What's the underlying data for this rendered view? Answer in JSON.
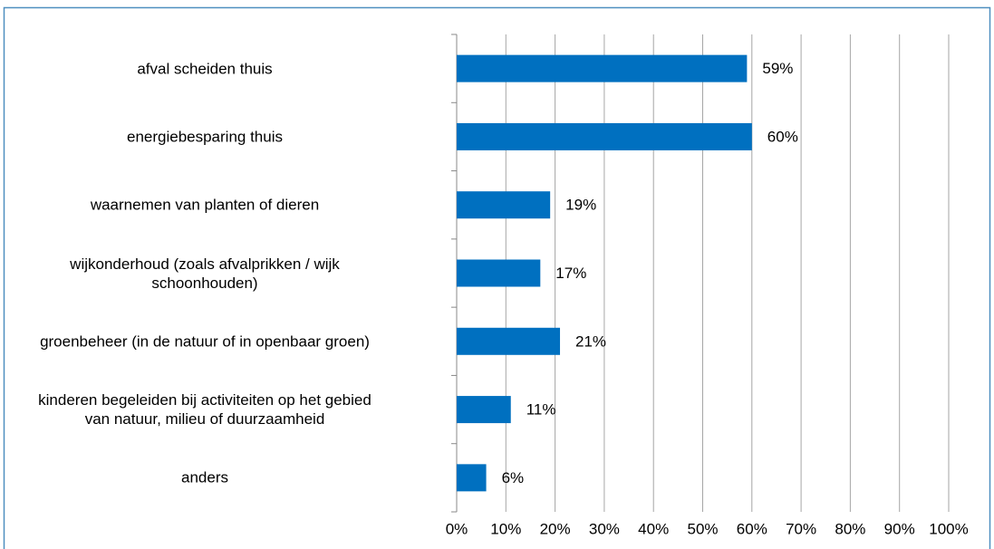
{
  "chart_data": {
    "type": "bar",
    "orientation": "horizontal",
    "categories": [
      "afval scheiden thuis",
      "energiebesparing thuis",
      "waarnemen van planten of dieren",
      "wijkonderhoud (zoals afvalprikken / wijk\nschoonhouden)",
      "groenbeheer (in de natuur of in openbaar groen)",
      "kinderen begeleiden bij activiteiten op het gebied\nvan natuur, milieu of duurzaamheid",
      "anders"
    ],
    "values": [
      59,
      60,
      19,
      17,
      21,
      11,
      6
    ],
    "value_labels": [
      "59%",
      "60%",
      "19%",
      "17%",
      "21%",
      "11%",
      "6%"
    ],
    "color": "#0070c0",
    "xlim": [
      0,
      100
    ],
    "xticks": [
      {
        "value": 0,
        "label": "0%"
      },
      {
        "value": 10,
        "label": "10%"
      },
      {
        "value": 20,
        "label": "20%"
      },
      {
        "value": 30,
        "label": "30%"
      },
      {
        "value": 40,
        "label": "40%"
      },
      {
        "value": 50,
        "label": "50%"
      },
      {
        "value": 60,
        "label": "60%"
      },
      {
        "value": 70,
        "label": "70%"
      },
      {
        "value": 80,
        "label": "80%"
      },
      {
        "value": 90,
        "label": "90%"
      },
      {
        "value": 100,
        "label": "100%"
      }
    ],
    "grid": true
  }
}
